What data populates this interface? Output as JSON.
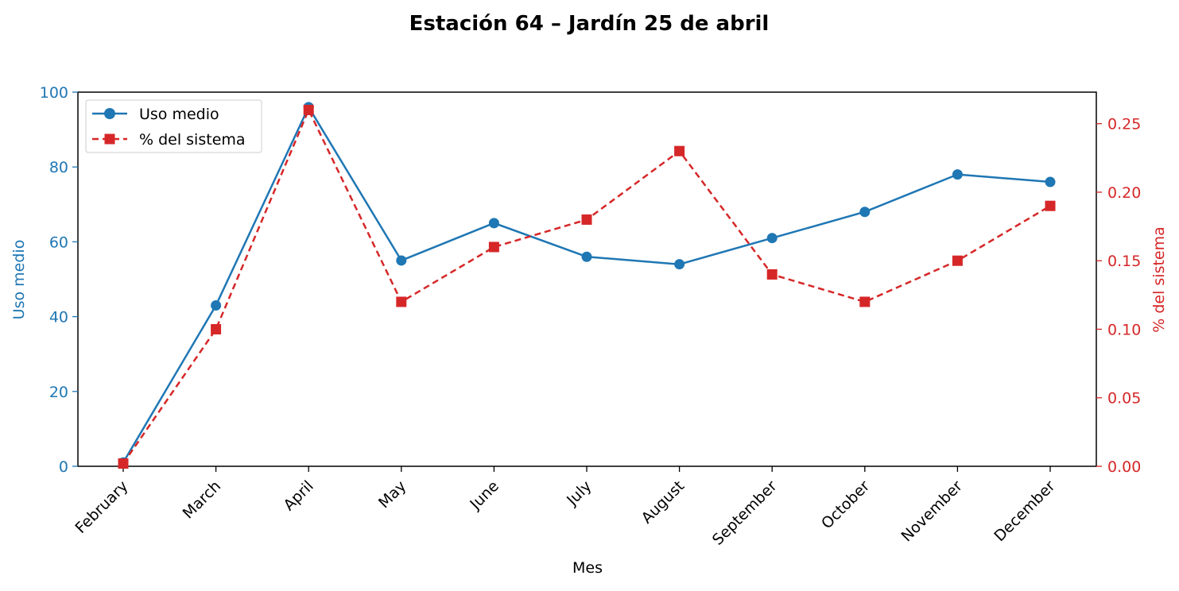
{
  "chart_data": {
    "type": "line",
    "title": "Estación 64 – Jardín 25 de abril",
    "xlabel": "Mes",
    "ylabel_left": "Uso medio",
    "ylabel_right": "% del sistema",
    "categories": [
      "February",
      "March",
      "April",
      "May",
      "June",
      "July",
      "August",
      "September",
      "October",
      "November",
      "December"
    ],
    "series": [
      {
        "name": "Uso medio",
        "axis": "left",
        "color": "#1f77b4",
        "line_style": "solid",
        "marker": "circle",
        "values": [
          1,
          43,
          96,
          55,
          65,
          56,
          54,
          61,
          68,
          78,
          76
        ]
      },
      {
        "name": "% del sistema",
        "axis": "right",
        "color": "#d62728",
        "line_style": "dashed",
        "marker": "square",
        "values": [
          0.002,
          0.1,
          0.26,
          0.12,
          0.16,
          0.18,
          0.23,
          0.14,
          0.12,
          0.15,
          0.19
        ]
      }
    ],
    "ylim_left": [
      0,
      100
    ],
    "yticks_left": [
      0,
      20,
      40,
      60,
      80,
      100
    ],
    "ylim_right": [
      0,
      0.273
    ],
    "yticks_right": [
      "0.00",
      "0.05",
      "0.10",
      "0.15",
      "0.20",
      "0.25"
    ],
    "grid": false,
    "legend_position": "top-left"
  }
}
